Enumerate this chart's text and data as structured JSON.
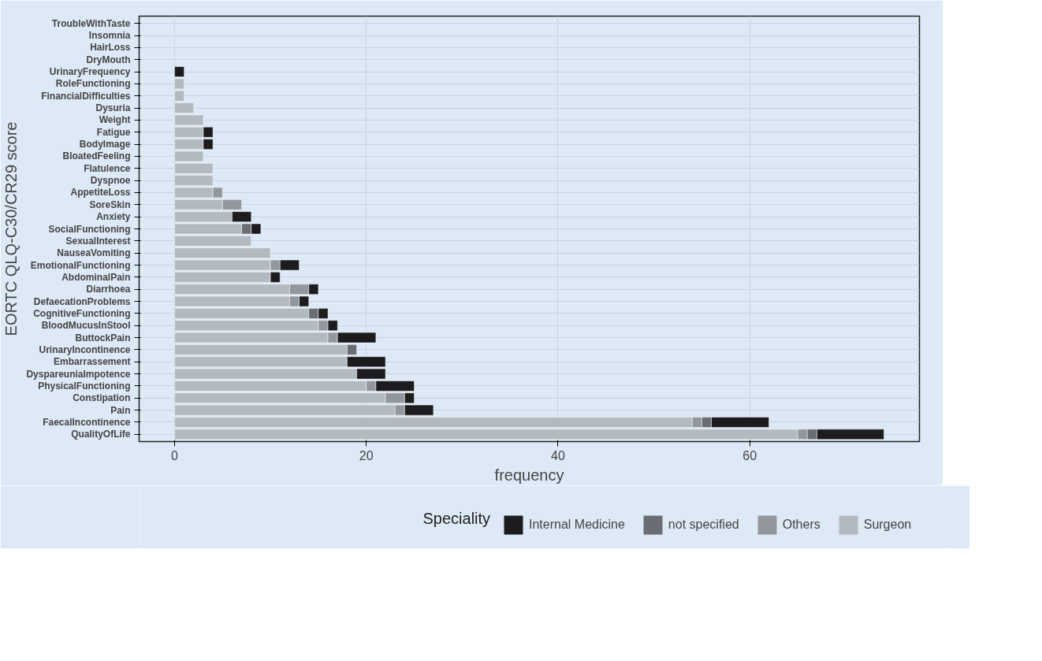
{
  "chart_data": {
    "type": "bar",
    "orientation": "horizontal",
    "stacked": true,
    "xlabel": "frequency",
    "ylabel": "EORTC QLQ-C30/CR29 score",
    "legend_title": "Speciality",
    "legend": "bottom",
    "grid": true,
    "categories": [
      "TroubleWithTaste",
      "Insomnia",
      "HairLoss",
      "DryMouth",
      "UrinaryFrequency",
      "RoleFunctioning",
      "FinancialDifficulties",
      "Dysuria",
      "Weight",
      "Fatigue",
      "BodyImage",
      "BloatedFeeling",
      "Flatulence",
      "Dyspnoe",
      "AppetiteLoss",
      "SoreSkin",
      "Anxiety",
      "SocialFunctioning",
      "SexualInterest",
      "NauseaVomiting",
      "EmotionalFunctioning",
      "AbdominalPain",
      "Diarrhoea",
      "DefaecationProblems",
      "CognitiveFunctioning",
      "BloodMucusInStool",
      "ButtockPain",
      "UrinaryIncontinence",
      "Embarrassement",
      "DyspareuniaImpotence",
      "PhysicalFunctioning",
      "Constipation",
      "Pain",
      "FaecalIncontinence",
      "QualityOfLife"
    ],
    "series": [
      {
        "name": "Surgeon",
        "color": "#b3b9c0",
        "values": [
          0,
          0,
          0,
          0,
          0,
          1,
          1,
          2,
          3,
          3,
          3,
          3,
          4,
          4,
          4,
          5,
          6,
          7,
          8,
          10,
          10,
          10,
          12,
          12,
          14,
          15,
          16,
          18,
          18,
          19,
          20,
          22,
          23,
          54,
          65
        ]
      },
      {
        "name": "Others",
        "color": "#92979e",
        "values": [
          0,
          0,
          0,
          0,
          0,
          0,
          0,
          0,
          0,
          0,
          0,
          0,
          0,
          0,
          1,
          2,
          0,
          0,
          0,
          0,
          1,
          0,
          2,
          1,
          0,
          1,
          1,
          0,
          0,
          0,
          1,
          2,
          1,
          1,
          1
        ]
      },
      {
        "name": "not specified",
        "color": "#6a6d73",
        "values": [
          0,
          0,
          0,
          0,
          0,
          0,
          0,
          0,
          0,
          0,
          0,
          0,
          0,
          0,
          0,
          0,
          0,
          1,
          0,
          0,
          0,
          0,
          0,
          0,
          1,
          0,
          0,
          1,
          0,
          0,
          0,
          0,
          0,
          1,
          1
        ]
      },
      {
        "name": "Internal Medicine",
        "color": "#1c1c1e",
        "values": [
          0,
          0,
          0,
          0,
          1,
          0,
          0,
          0,
          0,
          1,
          1,
          0,
          0,
          0,
          0,
          0,
          2,
          1,
          0,
          0,
          2,
          1,
          1,
          1,
          1,
          1,
          4,
          0,
          4,
          3,
          4,
          1,
          3,
          6,
          7
        ]
      }
    ],
    "xlim": [
      -3.7,
      77.7
    ],
    "xticks": [
      0,
      20,
      40,
      60
    ]
  }
}
